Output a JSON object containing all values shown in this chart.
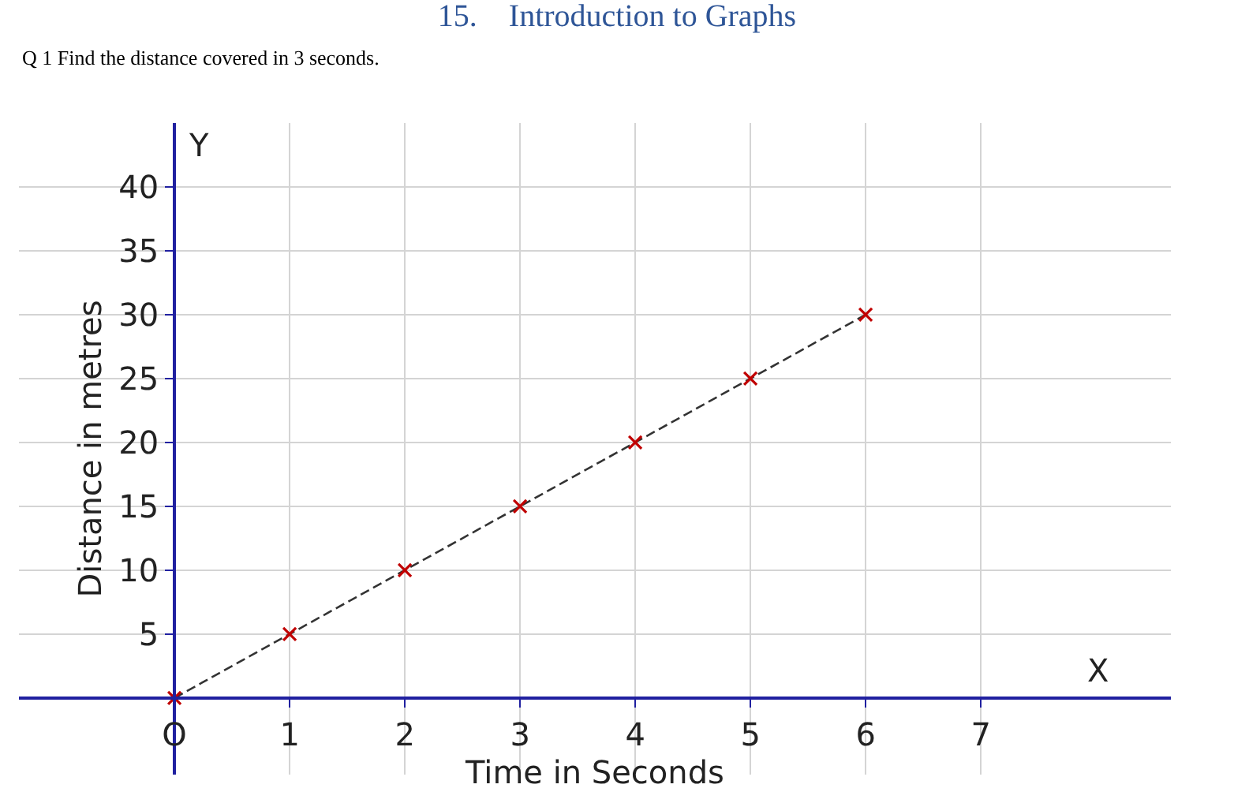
{
  "chart_data": {
    "type": "line",
    "title": "15.    Introduction to Graphs",
    "subtitle": "Q 1 Find the distance covered in 3 seconds.",
    "xlabel": "Time in Seconds",
    "ylabel": "Distance in metres",
    "x": [
      0,
      1,
      2,
      3,
      4,
      5,
      6
    ],
    "series": [
      {
        "color": "#c00000",
        "values": [
          0,
          5,
          10,
          15,
          20,
          25,
          30
        ]
      }
    ],
    "xlim": [
      -1.35,
      8.65
    ],
    "ylim": [
      -6,
      45
    ],
    "xticks": [
      {
        "value": 0,
        "label": "O"
      },
      1,
      2,
      3,
      4,
      5,
      6,
      7
    ],
    "yticks": [
      5,
      10,
      15,
      20,
      25,
      30,
      35,
      40
    ],
    "annotations": [
      "X",
      "Y"
    ],
    "grid": true,
    "marker": "cross",
    "line_style": "dashed"
  }
}
